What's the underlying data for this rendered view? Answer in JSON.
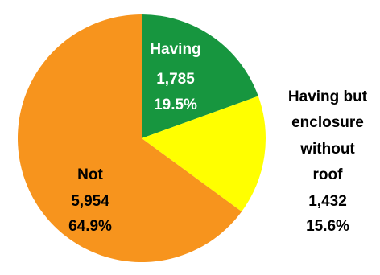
{
  "chart_data": {
    "type": "pie",
    "title": "",
    "slices": [
      {
        "category": "Having",
        "value": 1785,
        "value_label": "1,785",
        "percent": 19.5,
        "percent_label": "19.5%",
        "color": "#17963f"
      },
      {
        "category": "Having but enclosure without roof",
        "category_lines": [
          "Having but",
          "enclosure",
          "without",
          "roof"
        ],
        "value": 1432,
        "value_label": "1,432",
        "percent": 15.6,
        "percent_label": "15.6%",
        "color": "#ffff00"
      },
      {
        "category": "Not",
        "value": 5954,
        "value_label": "5,954",
        "percent": 64.9,
        "percent_label": "64.9%",
        "color": "#f7941d"
      }
    ],
    "start_angle": "12 o'clock",
    "direction": "clockwise",
    "legend": "none"
  }
}
